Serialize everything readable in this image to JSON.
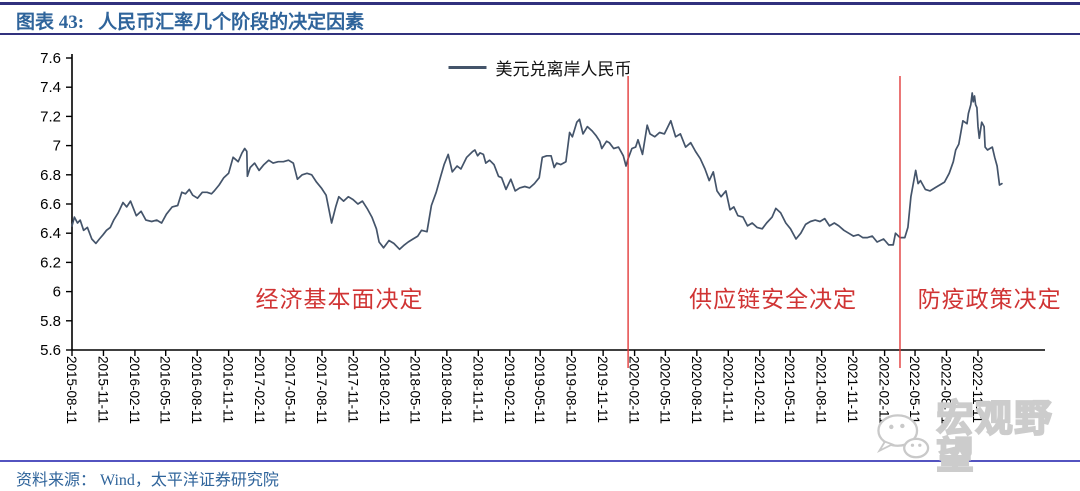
{
  "header": {
    "label": "图表 43:",
    "title": "人民币汇率几个阶段的决定因素"
  },
  "legend": {
    "label": "美元兑离岸人民币"
  },
  "footer": {
    "source": "资料来源： Wind，太平洋证券研究院"
  },
  "watermark": {
    "text": "宏观野望",
    "icon": "wechat-bubbles"
  },
  "colors": {
    "series_line": "#44546A",
    "event_line": "#E23B3B",
    "annotation_text": "#D03434",
    "title_text": "#2F649B",
    "rule_top": "#31317E",
    "rule_bottom": "#5353C0",
    "axis": "#000000"
  },
  "chart_data": {
    "type": "line",
    "title": "",
    "xlabel": "",
    "ylabel": "",
    "grid": false,
    "legend_position": "top-center",
    "ylim": [
      5.6,
      7.6
    ],
    "y_tick_labels": [
      "7.6",
      "7.4",
      "7.2",
      "7",
      "6.8",
      "6.6",
      "6.4",
      "6.2",
      "6",
      "5.8",
      "5.6"
    ],
    "x_domain": [
      "2015-08-11",
      "2023-05-26"
    ],
    "x_tick_labels": [
      "2015-08-11",
      "2015-11-11",
      "2016-02-11",
      "2016-05-11",
      "2016-08-11",
      "2016-11-11",
      "2017-02-11",
      "2017-05-11",
      "2017-08-11",
      "2017-11-11",
      "2018-02-11",
      "2018-05-11",
      "2018-08-11",
      "2018-11-11",
      "2019-02-11",
      "2019-05-11",
      "2019-08-11",
      "2019-11-11",
      "2020-02-11",
      "2020-05-11",
      "2020-08-11",
      "2020-11-11",
      "2021-02-11",
      "2021-05-11",
      "2021-08-11",
      "2021-11-11",
      "2022-02-11",
      "2022-05-11",
      "2022-08-11",
      "2022-11-11"
    ],
    "event_lines": [
      {
        "date": "2020-01-23",
        "color": "#E23B3B"
      },
      {
        "date": "2022-03-28",
        "color": "#E23B3B"
      }
    ],
    "annotations": [
      {
        "text": "经济基本面决定",
        "date": "2017-10-01",
        "y": 5.96
      },
      {
        "text": "供应链安全决定",
        "date": "2021-03-22",
        "y": 5.96
      },
      {
        "text": "防疫政策决定",
        "date": "2022-12-15",
        "y": 5.96
      }
    ],
    "series": [
      {
        "name": "美元兑离岸人民币",
        "color": "#44546A",
        "points": [
          [
            "2015-08-11",
            6.45
          ],
          [
            "2015-08-18",
            6.51
          ],
          [
            "2015-08-27",
            6.47
          ],
          [
            "2015-09-04",
            6.49
          ],
          [
            "2015-09-14",
            6.42
          ],
          [
            "2015-09-25",
            6.44
          ],
          [
            "2015-10-08",
            6.36
          ],
          [
            "2015-10-20",
            6.33
          ],
          [
            "2015-10-30",
            6.36
          ],
          [
            "2015-11-10",
            6.39
          ],
          [
            "2015-11-20",
            6.42
          ],
          [
            "2015-12-01",
            6.44
          ],
          [
            "2015-12-11",
            6.49
          ],
          [
            "2015-12-24",
            6.54
          ],
          [
            "2016-01-07",
            6.61
          ],
          [
            "2016-01-18",
            6.58
          ],
          [
            "2016-01-29",
            6.62
          ],
          [
            "2016-02-15",
            6.52
          ],
          [
            "2016-02-29",
            6.55
          ],
          [
            "2016-03-14",
            6.49
          ],
          [
            "2016-03-31",
            6.48
          ],
          [
            "2016-04-15",
            6.49
          ],
          [
            "2016-04-29",
            6.47
          ],
          [
            "2016-05-13",
            6.53
          ],
          [
            "2016-05-30",
            6.58
          ],
          [
            "2016-06-15",
            6.59
          ],
          [
            "2016-06-27",
            6.68
          ],
          [
            "2016-07-08",
            6.67
          ],
          [
            "2016-07-19",
            6.7
          ],
          [
            "2016-07-29",
            6.66
          ],
          [
            "2016-08-12",
            6.64
          ],
          [
            "2016-08-26",
            6.68
          ],
          [
            "2016-09-09",
            6.68
          ],
          [
            "2016-09-22",
            6.67
          ],
          [
            "2016-09-30",
            6.69
          ],
          [
            "2016-10-14",
            6.73
          ],
          [
            "2016-10-28",
            6.78
          ],
          [
            "2016-11-11",
            6.81
          ],
          [
            "2016-11-24",
            6.92
          ],
          [
            "2016-12-09",
            6.89
          ],
          [
            "2016-12-20",
            6.95
          ],
          [
            "2016-12-28",
            6.98
          ],
          [
            "2017-01-03",
            6.96
          ],
          [
            "2017-01-05",
            6.79
          ],
          [
            "2017-01-13",
            6.85
          ],
          [
            "2017-01-26",
            6.88
          ],
          [
            "2017-02-08",
            6.83
          ],
          [
            "2017-02-22",
            6.87
          ],
          [
            "2017-03-08",
            6.9
          ],
          [
            "2017-03-21",
            6.88
          ],
          [
            "2017-04-05",
            6.89
          ],
          [
            "2017-04-20",
            6.89
          ],
          [
            "2017-05-05",
            6.9
          ],
          [
            "2017-05-19",
            6.88
          ],
          [
            "2017-05-31",
            6.77
          ],
          [
            "2017-06-14",
            6.8
          ],
          [
            "2017-06-28",
            6.81
          ],
          [
            "2017-07-12",
            6.8
          ],
          [
            "2017-07-26",
            6.75
          ],
          [
            "2017-08-09",
            6.71
          ],
          [
            "2017-08-23",
            6.66
          ],
          [
            "2017-09-08",
            6.47
          ],
          [
            "2017-09-20",
            6.58
          ],
          [
            "2017-09-29",
            6.65
          ],
          [
            "2017-10-13",
            6.62
          ],
          [
            "2017-10-27",
            6.65
          ],
          [
            "2017-11-10",
            6.63
          ],
          [
            "2017-11-24",
            6.6
          ],
          [
            "2017-12-07",
            6.62
          ],
          [
            "2017-12-21",
            6.57
          ],
          [
            "2018-01-04",
            6.51
          ],
          [
            "2018-01-17",
            6.43
          ],
          [
            "2018-01-25",
            6.34
          ],
          [
            "2018-02-07",
            6.3
          ],
          [
            "2018-02-23",
            6.35
          ],
          [
            "2018-03-09",
            6.33
          ],
          [
            "2018-03-26",
            6.29
          ],
          [
            "2018-04-09",
            6.32
          ],
          [
            "2018-04-20",
            6.34
          ],
          [
            "2018-05-04",
            6.36
          ],
          [
            "2018-05-18",
            6.38
          ],
          [
            "2018-05-29",
            6.42
          ],
          [
            "2018-06-14",
            6.41
          ],
          [
            "2018-06-27",
            6.59
          ],
          [
            "2018-07-11",
            6.68
          ],
          [
            "2018-07-24",
            6.79
          ],
          [
            "2018-08-03",
            6.87
          ],
          [
            "2018-08-15",
            6.94
          ],
          [
            "2018-08-27",
            6.82
          ],
          [
            "2018-09-10",
            6.86
          ],
          [
            "2018-09-21",
            6.84
          ],
          [
            "2018-10-08",
            6.92
          ],
          [
            "2018-10-26",
            6.96
          ],
          [
            "2018-11-01",
            6.97
          ],
          [
            "2018-11-09",
            6.93
          ],
          [
            "2018-11-16",
            6.95
          ],
          [
            "2018-11-26",
            6.94
          ],
          [
            "2018-12-03",
            6.88
          ],
          [
            "2018-12-14",
            6.9
          ],
          [
            "2018-12-27",
            6.87
          ],
          [
            "2019-01-09",
            6.79
          ],
          [
            "2019-01-18",
            6.78
          ],
          [
            "2019-01-31",
            6.7
          ],
          [
            "2019-02-14",
            6.77
          ],
          [
            "2019-02-27",
            6.69
          ],
          [
            "2019-03-12",
            6.71
          ],
          [
            "2019-03-27",
            6.72
          ],
          [
            "2019-04-10",
            6.71
          ],
          [
            "2019-04-24",
            6.74
          ],
          [
            "2019-05-08",
            6.78
          ],
          [
            "2019-05-17",
            6.92
          ],
          [
            "2019-05-30",
            6.93
          ],
          [
            "2019-06-12",
            6.93
          ],
          [
            "2019-06-21",
            6.85
          ],
          [
            "2019-06-28",
            6.88
          ],
          [
            "2019-07-10",
            6.87
          ],
          [
            "2019-07-25",
            6.89
          ],
          [
            "2019-08-05",
            7.09
          ],
          [
            "2019-08-13",
            7.06
          ],
          [
            "2019-08-26",
            7.16
          ],
          [
            "2019-09-03",
            7.18
          ],
          [
            "2019-09-13",
            7.08
          ],
          [
            "2019-09-26",
            7.13
          ],
          [
            "2019-10-10",
            7.1
          ],
          [
            "2019-10-21",
            7.07
          ],
          [
            "2019-11-01",
            7.03
          ],
          [
            "2019-11-07",
            6.98
          ],
          [
            "2019-11-21",
            7.03
          ],
          [
            "2019-11-29",
            7.02
          ],
          [
            "2019-12-12",
            6.98
          ],
          [
            "2019-12-26",
            6.99
          ],
          [
            "2020-01-09",
            6.93
          ],
          [
            "2020-01-17",
            6.86
          ],
          [
            "2020-01-23",
            6.91
          ],
          [
            "2020-02-03",
            6.98
          ],
          [
            "2020-02-14",
            6.99
          ],
          [
            "2020-02-21",
            7.04
          ],
          [
            "2020-03-05",
            6.94
          ],
          [
            "2020-03-19",
            7.14
          ],
          [
            "2020-03-27",
            7.08
          ],
          [
            "2020-04-10",
            7.06
          ],
          [
            "2020-04-24",
            7.09
          ],
          [
            "2020-05-08",
            7.08
          ],
          [
            "2020-05-27",
            7.17
          ],
          [
            "2020-06-10",
            7.06
          ],
          [
            "2020-06-24",
            7.08
          ],
          [
            "2020-07-09",
            6.99
          ],
          [
            "2020-07-24",
            7.02
          ],
          [
            "2020-08-07",
            6.96
          ],
          [
            "2020-08-21",
            6.91
          ],
          [
            "2020-09-04",
            6.84
          ],
          [
            "2020-09-16",
            6.76
          ],
          [
            "2020-09-28",
            6.82
          ],
          [
            "2020-10-09",
            6.69
          ],
          [
            "2020-10-21",
            6.65
          ],
          [
            "2020-11-04",
            6.69
          ],
          [
            "2020-11-16",
            6.56
          ],
          [
            "2020-11-27",
            6.58
          ],
          [
            "2020-12-09",
            6.52
          ],
          [
            "2020-12-24",
            6.51
          ],
          [
            "2021-01-06",
            6.45
          ],
          [
            "2021-01-20",
            6.47
          ],
          [
            "2021-02-03",
            6.44
          ],
          [
            "2021-02-18",
            6.43
          ],
          [
            "2021-03-03",
            6.47
          ],
          [
            "2021-03-19",
            6.51
          ],
          [
            "2021-03-30",
            6.57
          ],
          [
            "2021-04-13",
            6.54
          ],
          [
            "2021-04-28",
            6.47
          ],
          [
            "2021-05-12",
            6.43
          ],
          [
            "2021-05-28",
            6.36
          ],
          [
            "2021-06-11",
            6.4
          ],
          [
            "2021-06-25",
            6.46
          ],
          [
            "2021-07-09",
            6.48
          ],
          [
            "2021-07-23",
            6.49
          ],
          [
            "2021-08-06",
            6.48
          ],
          [
            "2021-08-20",
            6.5
          ],
          [
            "2021-09-03",
            6.45
          ],
          [
            "2021-09-17",
            6.47
          ],
          [
            "2021-09-30",
            6.45
          ],
          [
            "2021-10-15",
            6.42
          ],
          [
            "2021-10-29",
            6.4
          ],
          [
            "2021-11-12",
            6.38
          ],
          [
            "2021-11-26",
            6.39
          ],
          [
            "2021-12-09",
            6.37
          ],
          [
            "2021-12-23",
            6.37
          ],
          [
            "2022-01-06",
            6.38
          ],
          [
            "2022-01-20",
            6.34
          ],
          [
            "2022-02-08",
            6.36
          ],
          [
            "2022-02-23",
            6.32
          ],
          [
            "2022-03-08",
            6.32
          ],
          [
            "2022-03-15",
            6.4
          ],
          [
            "2022-03-28",
            6.37
          ],
          [
            "2022-04-11",
            6.37
          ],
          [
            "2022-04-20",
            6.44
          ],
          [
            "2022-04-29",
            6.65
          ],
          [
            "2022-05-13",
            6.83
          ],
          [
            "2022-05-20",
            6.74
          ],
          [
            "2022-05-27",
            6.76
          ],
          [
            "2022-06-10",
            6.7
          ],
          [
            "2022-06-24",
            6.69
          ],
          [
            "2022-07-08",
            6.71
          ],
          [
            "2022-07-22",
            6.73
          ],
          [
            "2022-08-05",
            6.75
          ],
          [
            "2022-08-19",
            6.81
          ],
          [
            "2022-08-31",
            6.89
          ],
          [
            "2022-09-07",
            6.97
          ],
          [
            "2022-09-16",
            7.01
          ],
          [
            "2022-09-28",
            7.17
          ],
          [
            "2022-10-10",
            7.15
          ],
          [
            "2022-10-14",
            7.22
          ],
          [
            "2022-10-21",
            7.28
          ],
          [
            "2022-10-25",
            7.36
          ],
          [
            "2022-10-28",
            7.3
          ],
          [
            "2022-11-01",
            7.34
          ],
          [
            "2022-11-04",
            7.28
          ],
          [
            "2022-11-08",
            7.26
          ],
          [
            "2022-11-11",
            7.13
          ],
          [
            "2022-11-15",
            7.05
          ],
          [
            "2022-11-22",
            7.16
          ],
          [
            "2022-11-29",
            7.13
          ],
          [
            "2022-12-02",
            6.99
          ],
          [
            "2022-12-09",
            6.97
          ],
          [
            "2022-12-16",
            6.98
          ],
          [
            "2022-12-23",
            6.99
          ],
          [
            "2022-12-30",
            6.92
          ],
          [
            "2023-01-06",
            6.86
          ],
          [
            "2023-01-13",
            6.73
          ],
          [
            "2023-01-20",
            6.74
          ]
        ]
      }
    ]
  }
}
